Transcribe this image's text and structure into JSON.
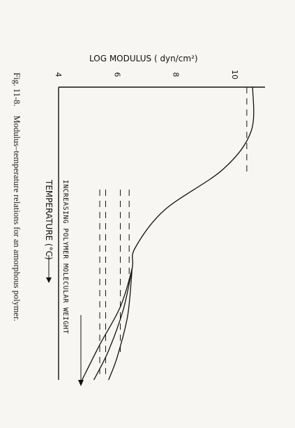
{
  "caption": {
    "label": "Fig. 11-8.",
    "text": "Modulus–temperature relations for an amorphous polymer."
  },
  "chart_data": {
    "type": "line",
    "title": "",
    "ylabel": "LOG MODULUS ( dyn/cm²)",
    "ylabel_sup": "2",
    "xlabel": "TEMPERATURE (°C)",
    "annotation": "INCREASING POLYMER MOLECULAR WEIGHT",
    "yticks": [
      "4",
      "6",
      "8",
      "10"
    ],
    "ylim": [
      4,
      11
    ],
    "grid": false,
    "legend": "none",
    "series": [
      {
        "points": [
          [
            0,
            10.6
          ],
          [
            0.15,
            10.55
          ],
          [
            0.28,
            9.6
          ],
          [
            0.42,
            7.6
          ],
          [
            0.55,
            6.6
          ],
          [
            0.62,
            6.5
          ],
          [
            0.75,
            6.1
          ],
          [
            0.88,
            5.4
          ],
          [
            1.0,
            4.8
          ]
        ]
      },
      {
        "points": [
          [
            0.62,
            6.5
          ],
          [
            0.76,
            6.2
          ],
          [
            0.9,
            5.7
          ],
          [
            1.0,
            5.2
          ]
        ]
      },
      {
        "points": [
          [
            0.62,
            6.5
          ],
          [
            0.78,
            6.35
          ],
          [
            0.92,
            6.0
          ],
          [
            1.0,
            5.7
          ]
        ]
      }
    ],
    "dashed_lines": [
      {
        "level": 10.4,
        "x": [
          0,
          0.3
        ]
      },
      {
        "level": 6.4,
        "x": [
          0.35,
          0.68
        ]
      },
      {
        "level": 6.1,
        "x": [
          0.35,
          0.92
        ]
      },
      {
        "level": 5.6,
        "x": [
          0.35,
          0.98
        ]
      },
      {
        "level": 5.4,
        "x": [
          0.35,
          0.98
        ]
      }
    ]
  }
}
